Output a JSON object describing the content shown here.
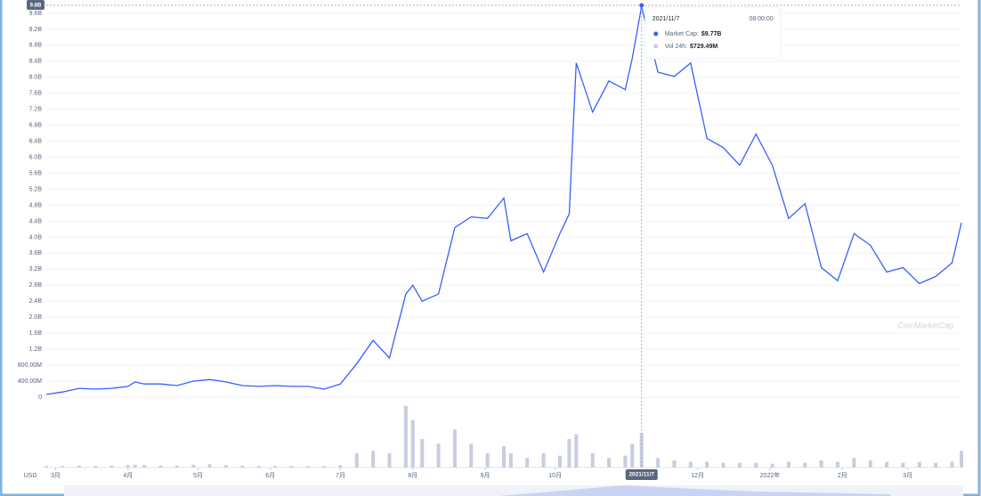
{
  "chart_data": {
    "type": "line",
    "x": [
      "2021/2/25",
      "2021/3/4",
      "2021/3/11",
      "2021/3/18",
      "2021/3/25",
      "2021/4/1",
      "2021/4/4",
      "2021/4/8",
      "2021/4/15",
      "2021/4/22",
      "2021/4/29",
      "2021/5/6",
      "2021/5/13",
      "2021/5/20",
      "2021/5/27",
      "2021/6/3",
      "2021/6/10",
      "2021/6/17",
      "2021/6/24",
      "2021/7/1",
      "2021/7/8",
      "2021/7/15",
      "2021/7/22",
      "2021/7/29",
      "2021/8/1",
      "2021/8/5",
      "2021/8/12",
      "2021/8/19",
      "2021/8/26",
      "2021/9/2",
      "2021/9/9",
      "2021/9/12",
      "2021/9/19",
      "2021/9/26",
      "2021/10/3",
      "2021/10/7",
      "2021/10/10",
      "2021/10/17",
      "2021/10/24",
      "2021/10/31",
      "2021/11/3",
      "2021/11/7",
      "2021/11/14",
      "2021/11/21",
      "2021/11/28",
      "2021/12/5",
      "2021/12/12",
      "2021/12/19",
      "2021/12/26",
      "2022/1/2",
      "2022/1/9",
      "2022/1/16",
      "2022/1/23",
      "2022/1/30",
      "2022/2/6",
      "2022/2/13",
      "2022/2/20",
      "2022/2/27",
      "2022/3/6",
      "2022/3/13",
      "2022/3/20",
      "2022/3/24"
    ],
    "series": [
      {
        "color": "#3861fb",
        "values": [
          0.07,
          0.13,
          0.22,
          0.2,
          0.22,
          0.27,
          0.38,
          0.33,
          0.33,
          0.29,
          0.4,
          0.44,
          0.38,
          0.29,
          0.27,
          0.29,
          0.27,
          0.27,
          0.2,
          0.33,
          0.84,
          1.42,
          0.98,
          2.58,
          2.8,
          2.4,
          2.58,
          4.24,
          4.51,
          4.47,
          4.98,
          3.91,
          4.09,
          3.13,
          4.09,
          4.58,
          8.36,
          7.13,
          7.91,
          7.69,
          8.47,
          9.77,
          8.13,
          8.02,
          8.36,
          6.47,
          6.24,
          5.8,
          6.58,
          5.8,
          4.47,
          4.84,
          3.24,
          2.91,
          4.09,
          3.8,
          3.13,
          3.24,
          2.84,
          3.02,
          3.36,
          4.36
        ]
      },
      {
        "color": "#c8cde0",
        "axis": "y2",
        "values": [
          0.03,
          0.03,
          0.04,
          0.03,
          0.04,
          0.05,
          0.06,
          0.05,
          0.04,
          0.04,
          0.06,
          0.07,
          0.05,
          0.04,
          0.03,
          0.03,
          0.03,
          0.03,
          0.03,
          0.05,
          0.3,
          0.35,
          0.3,
          1.3,
          1.0,
          0.6,
          0.5,
          0.8,
          0.5,
          0.3,
          0.45,
          0.3,
          0.2,
          0.3,
          0.25,
          0.6,
          0.7,
          0.3,
          0.2,
          0.25,
          0.5,
          0.73,
          0.2,
          0.15,
          0.12,
          0.12,
          0.1,
          0.1,
          0.1,
          0.08,
          0.12,
          0.1,
          0.15,
          0.12,
          0.2,
          0.15,
          0.12,
          0.1,
          0.12,
          0.1,
          0.12,
          0.35
        ]
      }
    ],
    "ylim": [
      0,
      9.8
    ],
    "yticks": [
      0,
      {
        "value": 0.4,
        "label": "400.00M"
      },
      {
        "value": 0.8,
        "label": "800.00M"
      },
      {
        "value": 1.2,
        "label": "1.2B"
      },
      {
        "value": 1.6,
        "label": "1.6B"
      },
      {
        "value": 2.0,
        "label": "2.0B"
      },
      {
        "value": 2.4,
        "label": "2.4B"
      },
      {
        "value": 2.8,
        "label": "2.8B"
      },
      {
        "value": 3.2,
        "label": "3.2B"
      },
      {
        "value": 3.6,
        "label": "3.6B"
      },
      {
        "value": 4.0,
        "label": "4.0B"
      },
      {
        "value": 4.4,
        "label": "4.4B"
      },
      {
        "value": 4.8,
        "label": "4.8B"
      },
      {
        "value": 5.2,
        "label": "5.2B"
      },
      {
        "value": 5.6,
        "label": "5.6B"
      },
      {
        "value": 6.0,
        "label": "6.0B"
      },
      {
        "value": 6.4,
        "label": "6.4B"
      },
      {
        "value": 6.8,
        "label": "6.8B"
      },
      {
        "value": 7.2,
        "label": "7.2B"
      },
      {
        "value": 7.6,
        "label": "7.6B"
      },
      {
        "value": 8.0,
        "label": "8.0B"
      },
      {
        "value": 8.4,
        "label": "8.4B"
      },
      {
        "value": 8.8,
        "label": "8.8B"
      },
      {
        "value": 9.2,
        "label": "9.2B"
      },
      {
        "value": 9.6,
        "label": "9.6B"
      }
    ],
    "y2lim": [
      0,
      1.5
    ],
    "xlim": [
      "2021/2/25",
      "2022/3/24"
    ],
    "xticks": [
      {
        "value": "2021/3/1",
        "label": "3月"
      },
      {
        "value": "2021/4/1",
        "label": "4月"
      },
      {
        "value": "2021/5/1",
        "label": "5月"
      },
      {
        "value": "2021/6/1",
        "label": "6月"
      },
      {
        "value": "2021/7/1",
        "label": "7月"
      },
      {
        "value": "2021/8/1",
        "label": "8月"
      },
      {
        "value": "2021/9/1",
        "label": "9月"
      },
      {
        "value": "2021/10/1",
        "label": "10月"
      },
      {
        "value": "2021/12/1",
        "label": "12月"
      },
      {
        "value": "2022/1/1",
        "label": "2022年"
      },
      {
        "value": "2022/2/1",
        "label": "2月"
      },
      {
        "value": "2022/3/1",
        "label": "3月"
      }
    ],
    "grid": true,
    "x_axis_label": "USD",
    "crosshair": {
      "x": "2021/11/7",
      "y": 9.8,
      "y_label": "9.8B"
    },
    "tooltip": {
      "date": "2021/11/7",
      "time": "08:00:00",
      "rows": [
        {
          "label": "Market Cap:",
          "value": "$9.77B"
        },
        {
          "label": "Vol 24h:",
          "value": "$729.49M"
        }
      ]
    },
    "watermark": "CoinMarketCap"
  }
}
